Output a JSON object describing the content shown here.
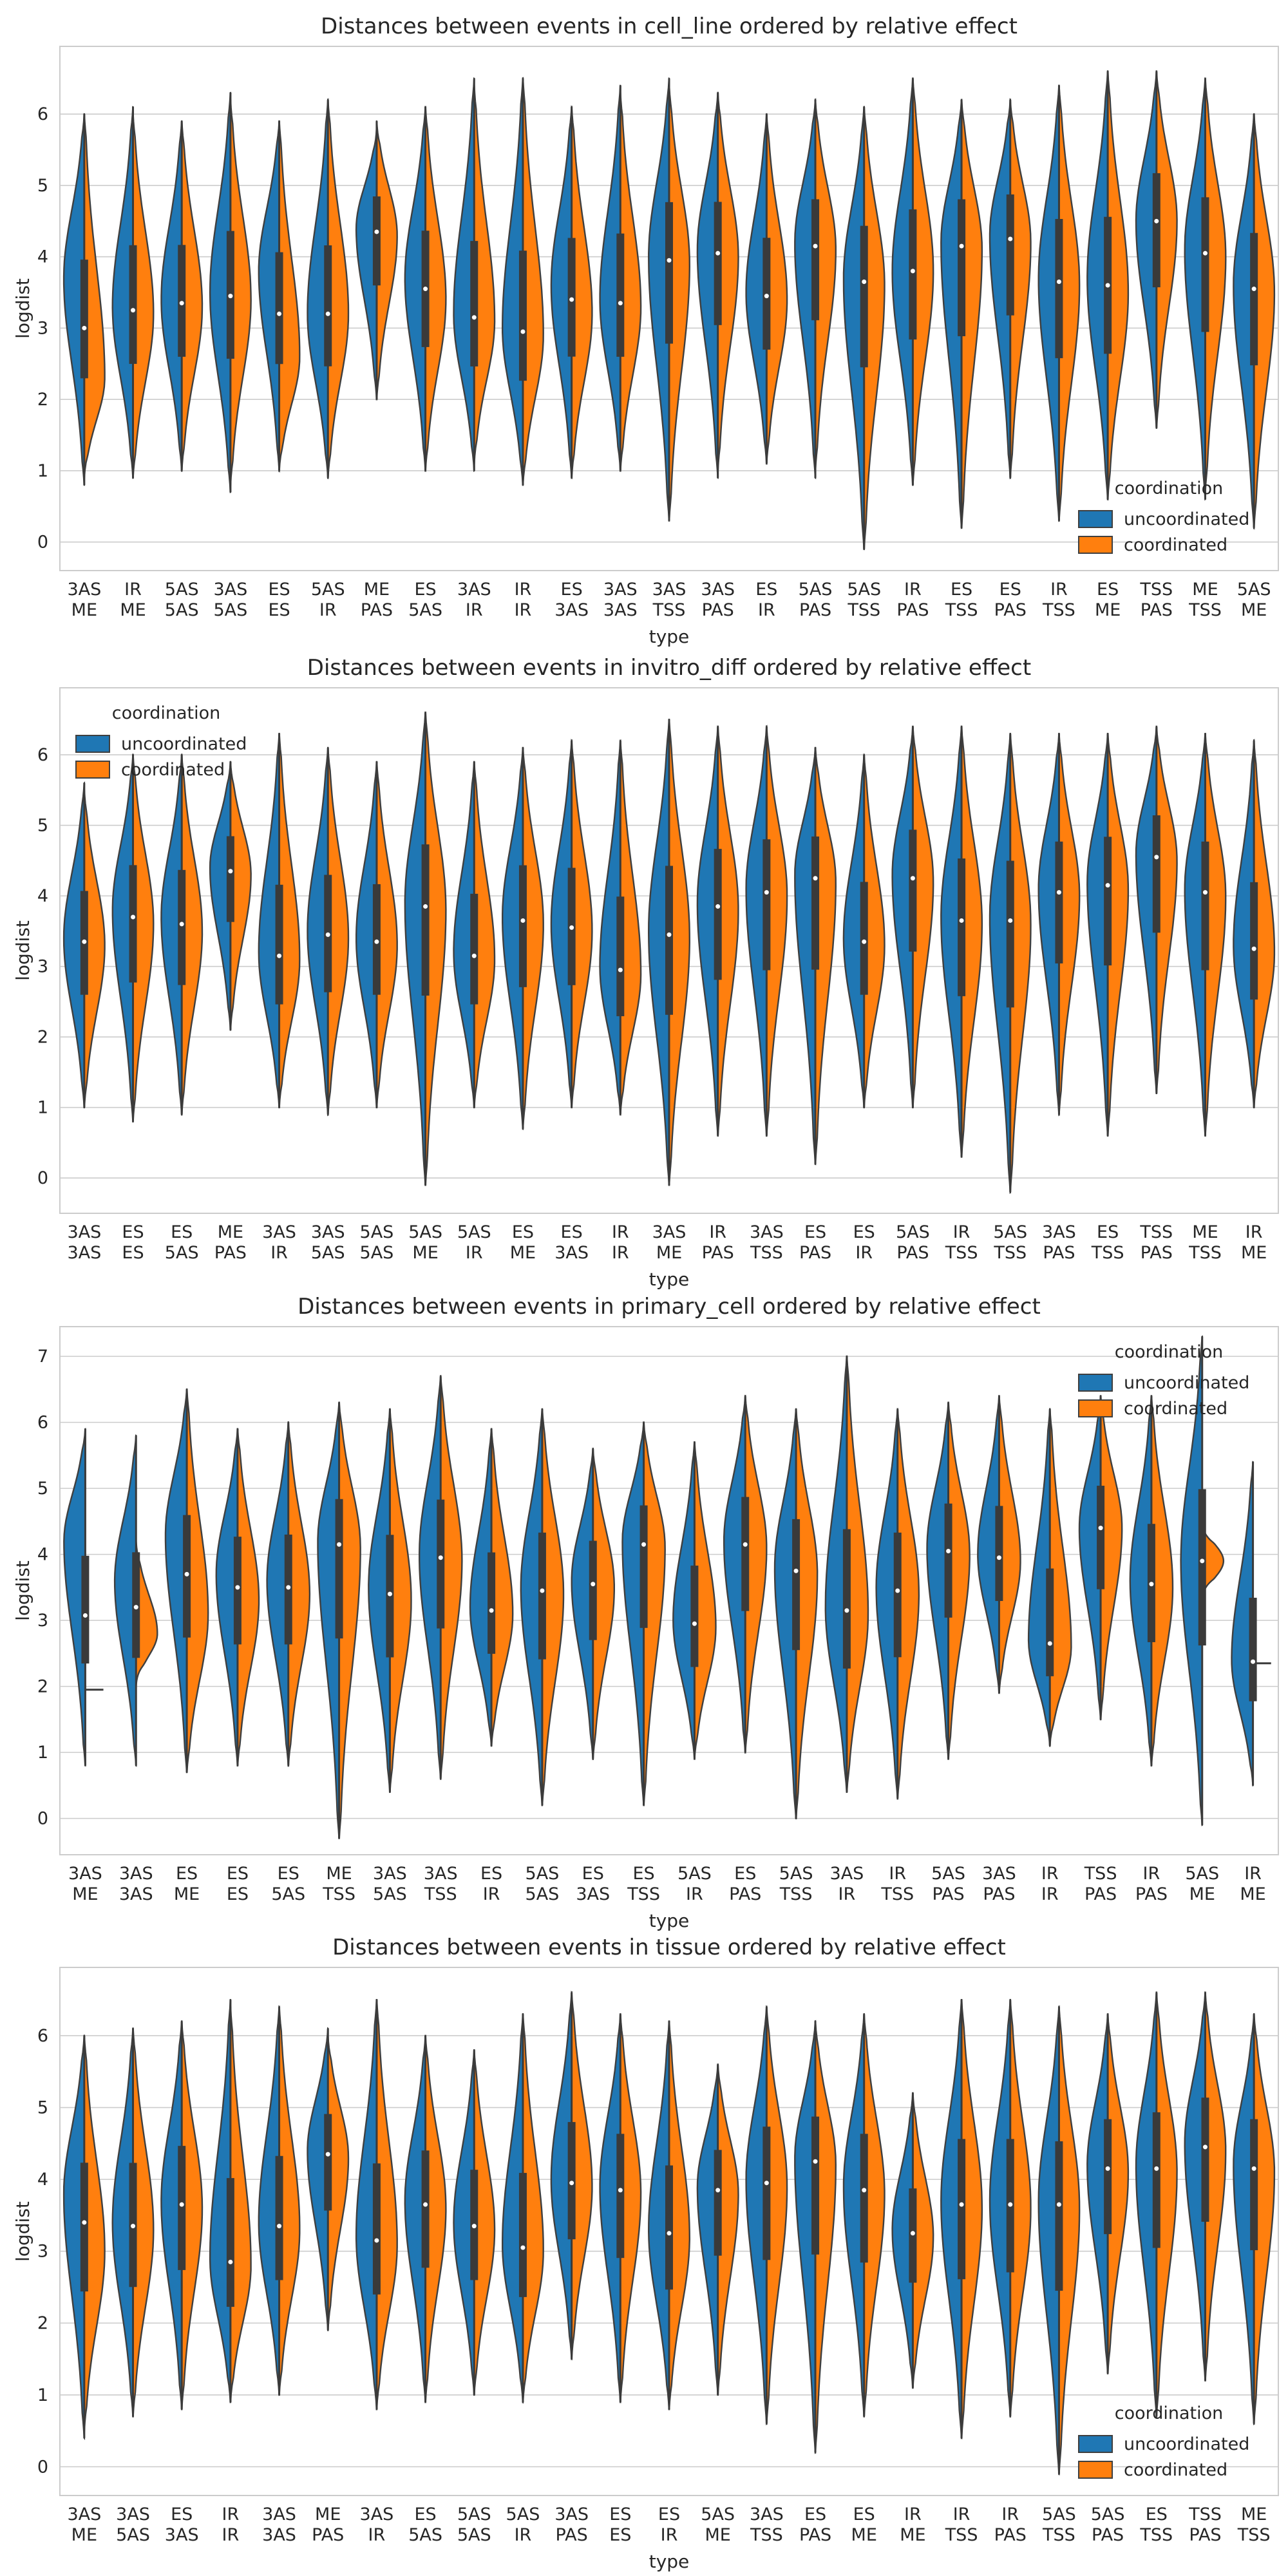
{
  "colors": {
    "uncoordinated": "#1f77b4",
    "coordinated": "#ff7f0e",
    "inner_box": "#3a3a3a",
    "grid": "#cccccc",
    "frame": "#cccccc"
  },
  "chart_data": [
    {
      "type": "violin",
      "split": true,
      "title": "Distances between events in cell_line ordered by relative effect",
      "xlabel": "type",
      "ylabel": "logdist",
      "ylim": [
        -0.4,
        6.95
      ],
      "yticks": [
        0,
        1,
        2,
        3,
        4,
        5,
        6
      ],
      "grid": true,
      "legend": {
        "title": "coordination",
        "entries": [
          "uncoordinated",
          "coordinated"
        ],
        "position": "lower-right"
      },
      "categories": [
        "3AS ME",
        "IR ME",
        "5AS 5AS",
        "3AS 5AS",
        "ES ES",
        "5AS IR",
        "ME PAS",
        "ES 5AS",
        "3AS IR",
        "IR IR",
        "ES 3AS",
        "3AS 3AS",
        "3AS TSS",
        "3AS PAS",
        "ES IR",
        "5AS PAS",
        "5AS TSS",
        "IR PAS",
        "ES TSS",
        "ES PAS",
        "IR TSS",
        "ES ME",
        "TSS PAS",
        "ME TSS",
        "5AS ME"
      ],
      "series": [
        {
          "name": "uncoordinated",
          "min": [
            0.8,
            0.9,
            1.0,
            0.7,
            1.0,
            0.9,
            2.0,
            1.0,
            1.0,
            0.8,
            0.9,
            1.0,
            0.3,
            0.9,
            1.1,
            0.9,
            -0.1,
            0.8,
            0.2,
            0.9,
            0.3,
            0.6,
            1.6,
            0.6,
            0.2
          ],
          "max": [
            6.0,
            6.1,
            5.9,
            6.3,
            5.9,
            6.2,
            5.8,
            6.1,
            6.5,
            6.5,
            6.1,
            6.4,
            6.5,
            6.3,
            6.0,
            6.2,
            6.1,
            6.5,
            6.2,
            6.2,
            6.4,
            6.6,
            6.6,
            6.5,
            6.0
          ],
          "median": [
            3.7,
            3.3,
            3.4,
            3.5,
            3.8,
            3.2,
            4.4,
            3.7,
            3.2,
            3.0,
            3.6,
            3.4,
            4.0,
            4.1,
            3.5,
            4.2,
            3.7,
            3.8,
            4.2,
            4.3,
            3.7,
            3.7,
            4.5,
            4.1,
            3.6
          ]
        },
        {
          "name": "coordinated",
          "min": [
            0.9,
            0.9,
            1.0,
            0.8,
            1.0,
            0.9,
            2.0,
            1.0,
            1.1,
            0.8,
            0.9,
            1.0,
            0.3,
            1.0,
            1.1,
            1.0,
            -0.1,
            0.8,
            0.2,
            0.9,
            0.3,
            0.6,
            1.6,
            0.7,
            0.2
          ],
          "max": [
            6.0,
            6.0,
            5.9,
            6.2,
            5.9,
            6.2,
            5.9,
            6.1,
            6.4,
            6.5,
            6.1,
            6.3,
            6.4,
            6.3,
            6.0,
            6.2,
            6.1,
            6.5,
            6.2,
            6.2,
            6.4,
            6.6,
            6.6,
            6.5,
            6.0
          ],
          "median": [
            2.3,
            3.2,
            3.3,
            3.4,
            2.6,
            3.2,
            4.3,
            3.4,
            3.1,
            2.9,
            3.2,
            3.3,
            3.9,
            4.0,
            3.4,
            4.1,
            3.6,
            3.8,
            4.1,
            4.2,
            3.6,
            3.5,
            4.5,
            4.0,
            3.5
          ]
        }
      ]
    },
    {
      "type": "violin",
      "split": true,
      "title": "Distances between events in invitro_diff ordered by relative effect",
      "xlabel": "type",
      "ylabel": "logdist",
      "ylim": [
        -0.5,
        6.95
      ],
      "yticks": [
        0,
        1,
        2,
        3,
        4,
        5,
        6
      ],
      "grid": true,
      "legend": {
        "title": "coordination",
        "entries": [
          "uncoordinated",
          "coordinated"
        ],
        "position": "upper-left"
      },
      "categories": [
        "3AS 3AS",
        "ES ES",
        "ES 5AS",
        "ME PAS",
        "3AS IR",
        "3AS 5AS",
        "5AS 5AS",
        "5AS ME",
        "5AS IR",
        "ES ME",
        "ES 3AS",
        "IR IR",
        "3AS ME",
        "IR PAS",
        "3AS TSS",
        "ES PAS",
        "ES IR",
        "5AS PAS",
        "IR TSS",
        "5AS TSS",
        "3AS PAS",
        "ES TSS",
        "TSS PAS",
        "ME TSS",
        "IR ME"
      ],
      "series": [
        {
          "name": "uncoordinated",
          "min": [
            1.0,
            0.8,
            0.9,
            2.1,
            1.0,
            0.9,
            1.0,
            -0.1,
            1.0,
            0.7,
            1.0,
            0.9,
            -0.1,
            0.6,
            0.6,
            0.2,
            1.0,
            1.0,
            0.3,
            -0.2,
            0.9,
            0.6,
            1.2,
            0.6,
            1.0
          ],
          "max": [
            5.6,
            6.0,
            6.0,
            5.9,
            6.3,
            6.1,
            5.9,
            6.6,
            5.9,
            6.1,
            6.2,
            6.2,
            6.5,
            6.4,
            6.4,
            6.1,
            6.0,
            6.4,
            6.4,
            6.3,
            6.3,
            6.3,
            6.4,
            6.3,
            6.2
          ],
          "median": [
            3.4,
            3.8,
            3.7,
            4.4,
            3.2,
            3.5,
            3.4,
            3.9,
            3.2,
            3.7,
            3.6,
            3.0,
            3.5,
            3.9,
            4.1,
            4.3,
            3.4,
            4.3,
            3.7,
            3.7,
            4.1,
            4.2,
            4.6,
            4.1,
            3.3
          ]
        },
        {
          "name": "coordinated",
          "min": [
            1.0,
            0.8,
            0.9,
            2.1,
            1.0,
            0.9,
            1.0,
            -0.1,
            1.0,
            0.7,
            1.0,
            0.9,
            -0.1,
            0.6,
            0.6,
            0.2,
            1.0,
            1.0,
            0.3,
            -0.2,
            0.9,
            0.6,
            1.2,
            0.6,
            1.0
          ],
          "max": [
            5.5,
            6.0,
            6.0,
            5.9,
            6.3,
            6.1,
            5.9,
            6.6,
            5.9,
            6.1,
            6.2,
            6.2,
            6.5,
            6.4,
            6.4,
            6.1,
            6.0,
            6.4,
            6.4,
            6.3,
            6.3,
            6.3,
            6.4,
            6.3,
            6.2
          ],
          "median": [
            3.3,
            3.6,
            3.5,
            4.3,
            3.1,
            3.4,
            3.3,
            3.8,
            3.1,
            3.6,
            3.5,
            2.9,
            3.4,
            3.8,
            4.0,
            4.2,
            3.3,
            4.2,
            3.6,
            3.6,
            4.0,
            4.1,
            4.5,
            4.0,
            3.2
          ]
        }
      ]
    },
    {
      "type": "violin",
      "split": true,
      "title": "Distances between events in primary_cell ordered by relative effect",
      "xlabel": "type",
      "ylabel": "logdist",
      "ylim": [
        -0.55,
        7.45
      ],
      "yticks": [
        0,
        1,
        2,
        3,
        4,
        5,
        6,
        7
      ],
      "grid": true,
      "legend": {
        "title": "coordination",
        "entries": [
          "uncoordinated",
          "coordinated"
        ],
        "position": "upper-right"
      },
      "categories": [
        "3AS ME",
        "3AS 3AS",
        "ES ME",
        "ES ES",
        "ES 5AS",
        "ME TSS",
        "3AS 5AS",
        "3AS TSS",
        "ES IR",
        "5AS 5AS",
        "ES 3AS",
        "ES TSS",
        "5AS IR",
        "ES PAS",
        "5AS TSS",
        "3AS IR",
        "IR TSS",
        "5AS PAS",
        "3AS PAS",
        "IR IR",
        "TSS PAS",
        "IR PAS",
        "5AS ME",
        "IR ME"
      ],
      "series": [
        {
          "name": "uncoordinated",
          "min": [
            0.8,
            0.8,
            0.7,
            0.8,
            0.8,
            -0.3,
            0.4,
            0.6,
            1.1,
            0.2,
            0.9,
            0.2,
            0.9,
            1.0,
            0.0,
            0.4,
            0.3,
            0.9,
            1.9,
            1.1,
            1.5,
            0.8,
            -0.1,
            0.5
          ],
          "max": [
            5.9,
            5.8,
            6.5,
            5.9,
            6.0,
            6.3,
            6.2,
            6.7,
            5.9,
            6.2,
            5.6,
            6.0,
            5.7,
            6.4,
            6.2,
            7.0,
            6.2,
            6.3,
            6.4,
            6.2,
            6.4,
            6.4,
            7.3,
            5.4
          ],
          "median": [
            4.2,
            3.6,
            4.3,
            3.7,
            3.6,
            4.2,
            3.5,
            4.0,
            3.2,
            3.5,
            3.6,
            4.2,
            3.0,
            4.2,
            3.8,
            3.2,
            3.5,
            4.1,
            4.0,
            2.7,
            4.4,
            3.6,
            3.9,
            2.4
          ]
        },
        {
          "name": "coordinated",
          "min": [
            1.95,
            2.0,
            0.7,
            0.8,
            0.8,
            -0.3,
            0.4,
            0.6,
            1.1,
            0.2,
            0.9,
            0.2,
            0.9,
            1.0,
            0.0,
            0.4,
            0.3,
            0.9,
            1.9,
            1.1,
            1.5,
            0.8,
            3.3,
            2.35
          ],
          "max": [
            1.95,
            4.2,
            6.5,
            5.9,
            6.0,
            6.3,
            6.2,
            6.7,
            5.9,
            6.2,
            5.6,
            6.0,
            5.7,
            6.4,
            6.2,
            7.0,
            6.2,
            6.3,
            6.4,
            6.2,
            6.4,
            6.4,
            4.5,
            2.35
          ],
          "median": [
            1.95,
            2.8,
            3.1,
            3.3,
            3.4,
            4.1,
            3.3,
            3.9,
            3.1,
            3.4,
            3.5,
            4.1,
            2.9,
            4.1,
            3.7,
            3.1,
            3.4,
            4.0,
            3.9,
            2.6,
            4.4,
            3.5,
            3.9,
            2.35
          ]
        }
      ]
    },
    {
      "type": "violin",
      "split": true,
      "title": "Distances between events in tissue ordered by relative effect",
      "xlabel": "type",
      "ylabel": "logdist",
      "ylim": [
        -0.4,
        6.95
      ],
      "yticks": [
        0,
        1,
        2,
        3,
        4,
        5,
        6
      ],
      "grid": true,
      "legend": {
        "title": "coordination",
        "entries": [
          "uncoordinated",
          "coordinated"
        ],
        "position": "lower-right"
      },
      "categories": [
        "3AS ME",
        "3AS 5AS",
        "ES 3AS",
        "IR IR",
        "3AS 3AS",
        "ME PAS",
        "3AS IR",
        "ES 5AS",
        "5AS 5AS",
        "5AS IR",
        "3AS PAS",
        "ES ES",
        "ES IR",
        "5AS ME",
        "3AS TSS",
        "ES PAS",
        "ES ME",
        "IR ME",
        "IR TSS",
        "IR PAS",
        "5AS TSS",
        "5AS PAS",
        "ES TSS",
        "TSS PAS",
        "ME TSS"
      ],
      "series": [
        {
          "name": "uncoordinated",
          "min": [
            0.4,
            0.7,
            0.8,
            0.9,
            1.0,
            1.9,
            0.8,
            0.9,
            1.0,
            0.9,
            1.5,
            0.9,
            0.8,
            1.0,
            0.6,
            0.2,
            0.7,
            1.1,
            0.4,
            0.7,
            -0.1,
            1.3,
            0.7,
            1.2,
            0.6
          ],
          "max": [
            6.0,
            6.1,
            6.2,
            6.5,
            6.4,
            6.1,
            6.5,
            6.0,
            5.8,
            6.3,
            6.6,
            6.3,
            6.2,
            5.6,
            6.4,
            6.2,
            6.3,
            5.2,
            6.5,
            6.5,
            6.4,
            6.3,
            6.6,
            6.6,
            6.3
          ],
          "median": [
            3.8,
            3.4,
            3.7,
            2.9,
            3.4,
            4.4,
            3.2,
            3.7,
            3.4,
            3.1,
            4.0,
            3.9,
            3.3,
            3.9,
            4.0,
            4.3,
            3.9,
            3.3,
            3.7,
            3.7,
            3.7,
            4.2,
            4.2,
            4.5,
            4.2
          ]
        },
        {
          "name": "coordinated",
          "min": [
            0.5,
            0.7,
            0.8,
            0.9,
            1.0,
            1.9,
            0.8,
            0.9,
            1.0,
            0.9,
            1.5,
            0.9,
            0.8,
            1.0,
            0.6,
            0.2,
            0.7,
            1.1,
            0.4,
            0.7,
            -0.1,
            1.3,
            0.7,
            1.2,
            0.6
          ],
          "max": [
            6.0,
            6.1,
            6.2,
            6.4,
            6.4,
            6.0,
            6.5,
            6.0,
            5.8,
            6.3,
            6.6,
            6.3,
            6.2,
            5.6,
            6.4,
            6.2,
            6.3,
            5.2,
            6.5,
            6.5,
            6.4,
            6.3,
            6.6,
            6.6,
            6.3
          ],
          "median": [
            3.0,
            3.3,
            3.6,
            2.8,
            3.3,
            4.3,
            3.1,
            3.6,
            3.3,
            3.0,
            3.9,
            3.8,
            3.2,
            3.8,
            3.9,
            4.2,
            3.8,
            3.2,
            3.6,
            3.6,
            3.6,
            4.1,
            4.1,
            4.4,
            4.1
          ]
        }
      ]
    }
  ]
}
